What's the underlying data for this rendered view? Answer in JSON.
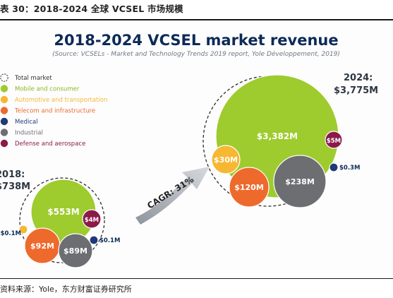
{
  "caption": "表 30：2018-2024 全球 VCSEL 市场规模",
  "source": "资料来源：Yole，东方财富证券研究所",
  "chart_data": {
    "type": "bubble",
    "title": "2018-2024 VCSEL market revenue",
    "subtitle": "(Source: VCSELs - Market and Technology Trends 2019 report, Yole Développement, 2019)",
    "units": "$M",
    "legend": [
      {
        "key": "total",
        "label": "Total market",
        "color": "#ffffff"
      },
      {
        "key": "mobile",
        "label": "Mobile and consumer",
        "color": "#9ecb2e"
      },
      {
        "key": "auto",
        "label": "Automotive and transportation",
        "color": "#f7b733"
      },
      {
        "key": "telecom",
        "label": "Telecom and infrastructure",
        "color": "#ee6a2c"
      },
      {
        "key": "medical",
        "label": "Medical",
        "color": "#1f3a78"
      },
      {
        "key": "industrial",
        "label": "Industrial",
        "color": "#6d6e72"
      },
      {
        "key": "defense",
        "label": "Defense and aerospace",
        "color": "#8b1a4a"
      }
    ],
    "years": [
      {
        "year": "2018:",
        "total_label": "$738M",
        "total": 738,
        "segments": [
          {
            "key": "mobile",
            "label": "$553M",
            "value": 553
          },
          {
            "key": "telecom",
            "label": "$92M",
            "value": 92
          },
          {
            "key": "industrial",
            "label": "$89M",
            "value": 89
          },
          {
            "key": "defense",
            "label": "$4M",
            "value": 4
          },
          {
            "key": "auto",
            "label": "$0.1M",
            "value": 0.1
          },
          {
            "key": "medical",
            "label": "$0.1M",
            "value": 0.1
          }
        ]
      },
      {
        "year": "2024:",
        "total_label": "$3,775M",
        "total": 3775,
        "segments": [
          {
            "key": "mobile",
            "label": "$3,382M",
            "value": 3382
          },
          {
            "key": "industrial",
            "label": "$238M",
            "value": 238
          },
          {
            "key": "telecom",
            "label": "$120M",
            "value": 120
          },
          {
            "key": "auto",
            "label": "$30M",
            "value": 30
          },
          {
            "key": "defense",
            "label": "$5M",
            "value": 5
          },
          {
            "key": "medical",
            "label": "$0.3M",
            "value": 0.3
          }
        ]
      }
    ],
    "growth_label": "CAGR: 31%"
  }
}
